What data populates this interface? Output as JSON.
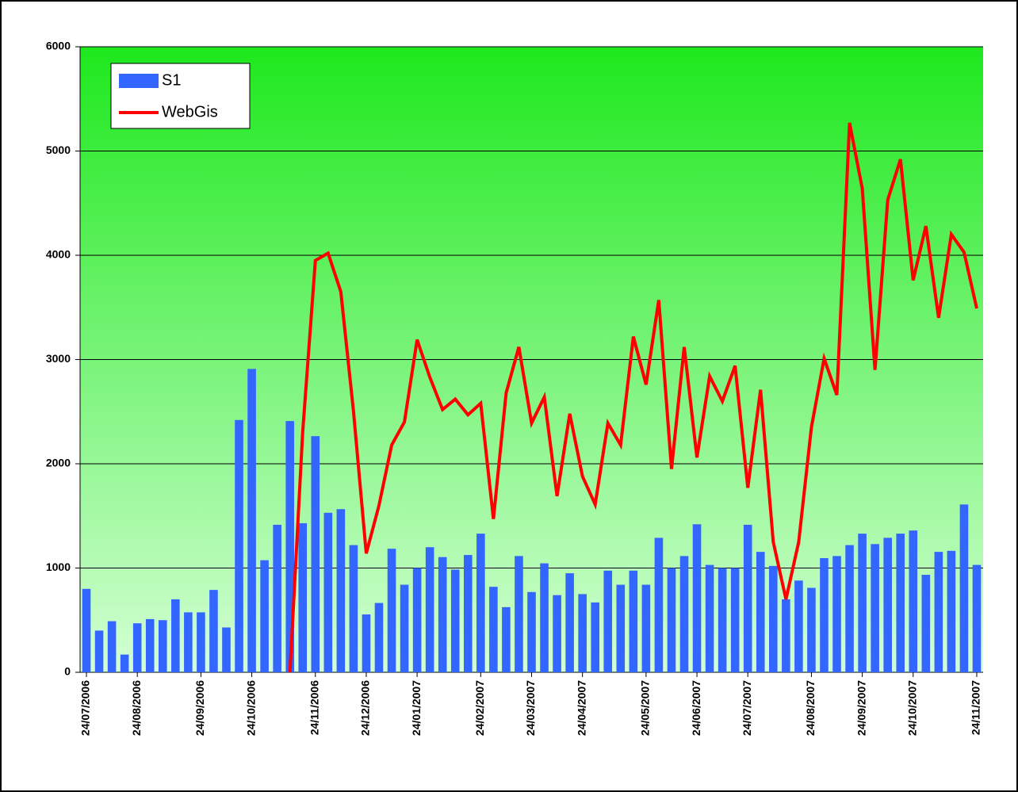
{
  "chart_data": {
    "type": "bar-line",
    "categories": [
      "24/07/2006",
      null,
      null,
      null,
      "24/08/2006",
      null,
      null,
      null,
      null,
      "24/09/2006",
      null,
      null,
      null,
      "24/10/2006",
      null,
      null,
      null,
      null,
      "24/11/2006",
      null,
      null,
      null,
      "24/12/2006",
      null,
      null,
      null,
      "24/01/2007",
      null,
      null,
      null,
      null,
      "24/02/2007",
      null,
      null,
      null,
      "24/03/2007",
      null,
      null,
      null,
      "24/04/2007",
      null,
      null,
      null,
      null,
      "24/05/2007",
      null,
      null,
      null,
      "24/06/2007",
      null,
      null,
      null,
      "24/07/2007",
      null,
      null,
      null,
      null,
      "24/08/2007",
      null,
      null,
      null,
      "24/09/2007",
      null,
      null,
      null,
      "24/10/2007",
      null,
      null,
      null,
      null,
      "24/11/2007"
    ],
    "series": [
      {
        "name": "S1",
        "kind": "bar",
        "color": "#3366ff",
        "values": [
          800,
          400,
          490,
          170,
          470,
          510,
          500,
          700,
          575,
          575,
          790,
          430,
          2420,
          2910,
          1075,
          1415,
          2410,
          1430,
          2265,
          1530,
          1565,
          1220,
          555,
          665,
          1185,
          840,
          1000,
          1200,
          1105,
          985,
          1125,
          1330,
          820,
          625,
          1115,
          770,
          1045,
          740,
          950,
          750,
          670,
          975,
          840,
          975,
          840,
          1290,
          1000,
          1115,
          1420,
          1030,
          1000,
          1000,
          1415,
          1155,
          1020,
          700,
          880,
          810,
          1095,
          1115,
          1220,
          1330,
          1230,
          1290,
          1330,
          1360,
          935,
          1155,
          1165,
          1610,
          1030
        ]
      },
      {
        "name": "WebGis",
        "kind": "line",
        "color": "#ff0000",
        "values": [
          null,
          null,
          null,
          null,
          null,
          null,
          null,
          null,
          null,
          null,
          null,
          null,
          null,
          null,
          null,
          null,
          0,
          2300,
          3950,
          4020,
          3650,
          2500,
          1140,
          1600,
          2180,
          2400,
          3190,
          2830,
          2520,
          2620,
          2470,
          2580,
          1470,
          2680,
          3120,
          2390,
          2640,
          1690,
          2480,
          1880,
          1610,
          2390,
          2180,
          3220,
          2760,
          3570,
          1950,
          3120,
          2060,
          2840,
          2600,
          2940,
          1770,
          2710,
          1250,
          700,
          1250,
          2350,
          3010,
          2660,
          5270,
          4640,
          2900,
          4530,
          4920,
          3760,
          4280,
          3400,
          4200,
          4030,
          3490
        ]
      }
    ],
    "ylim": [
      0,
      6000
    ],
    "yticks": [
      0,
      1000,
      2000,
      3000,
      4000,
      5000,
      6000
    ],
    "grid": true,
    "legend": "top-left"
  }
}
